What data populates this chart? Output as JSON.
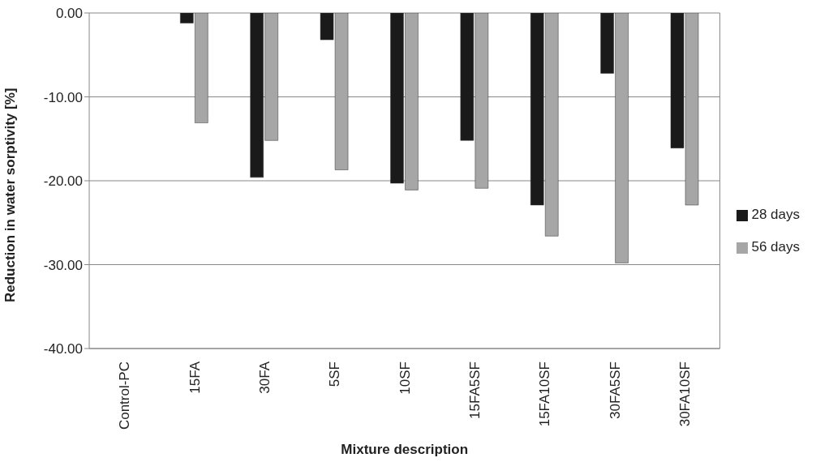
{
  "chart_data": {
    "type": "bar",
    "xlabel": "Mixture description",
    "ylabel": "Reduction in water sorptivity [%]",
    "categories": [
      "Control-PC",
      "15FA",
      "30FA",
      "5SF",
      "10SF",
      "15FA5SF",
      "15FA10SF",
      "30FA5SF",
      "30FA10SF"
    ],
    "series": [
      {
        "name": "28 days",
        "color": "#1a1a1a",
        "values": [
          0,
          -1.2,
          -19.6,
          -3.2,
          -20.3,
          -15.2,
          -22.9,
          -7.2,
          -16.1
        ]
      },
      {
        "name": "56 days",
        "color": "#a6a6a6",
        "values": [
          0,
          -13.1,
          -15.2,
          -18.7,
          -21.1,
          -20.9,
          -26.6,
          -29.8,
          -22.9
        ]
      }
    ],
    "ylim": [
      -40,
      0
    ],
    "yticks": [
      {
        "value": -40,
        "label": "-40.00"
      },
      {
        "value": -30,
        "label": "-30.00"
      },
      {
        "value": -20,
        "label": "-20.00"
      },
      {
        "value": -10,
        "label": "-10.00"
      },
      {
        "value": 0,
        "label": "0.00"
      }
    ],
    "grid": "y",
    "legend": "right"
  }
}
